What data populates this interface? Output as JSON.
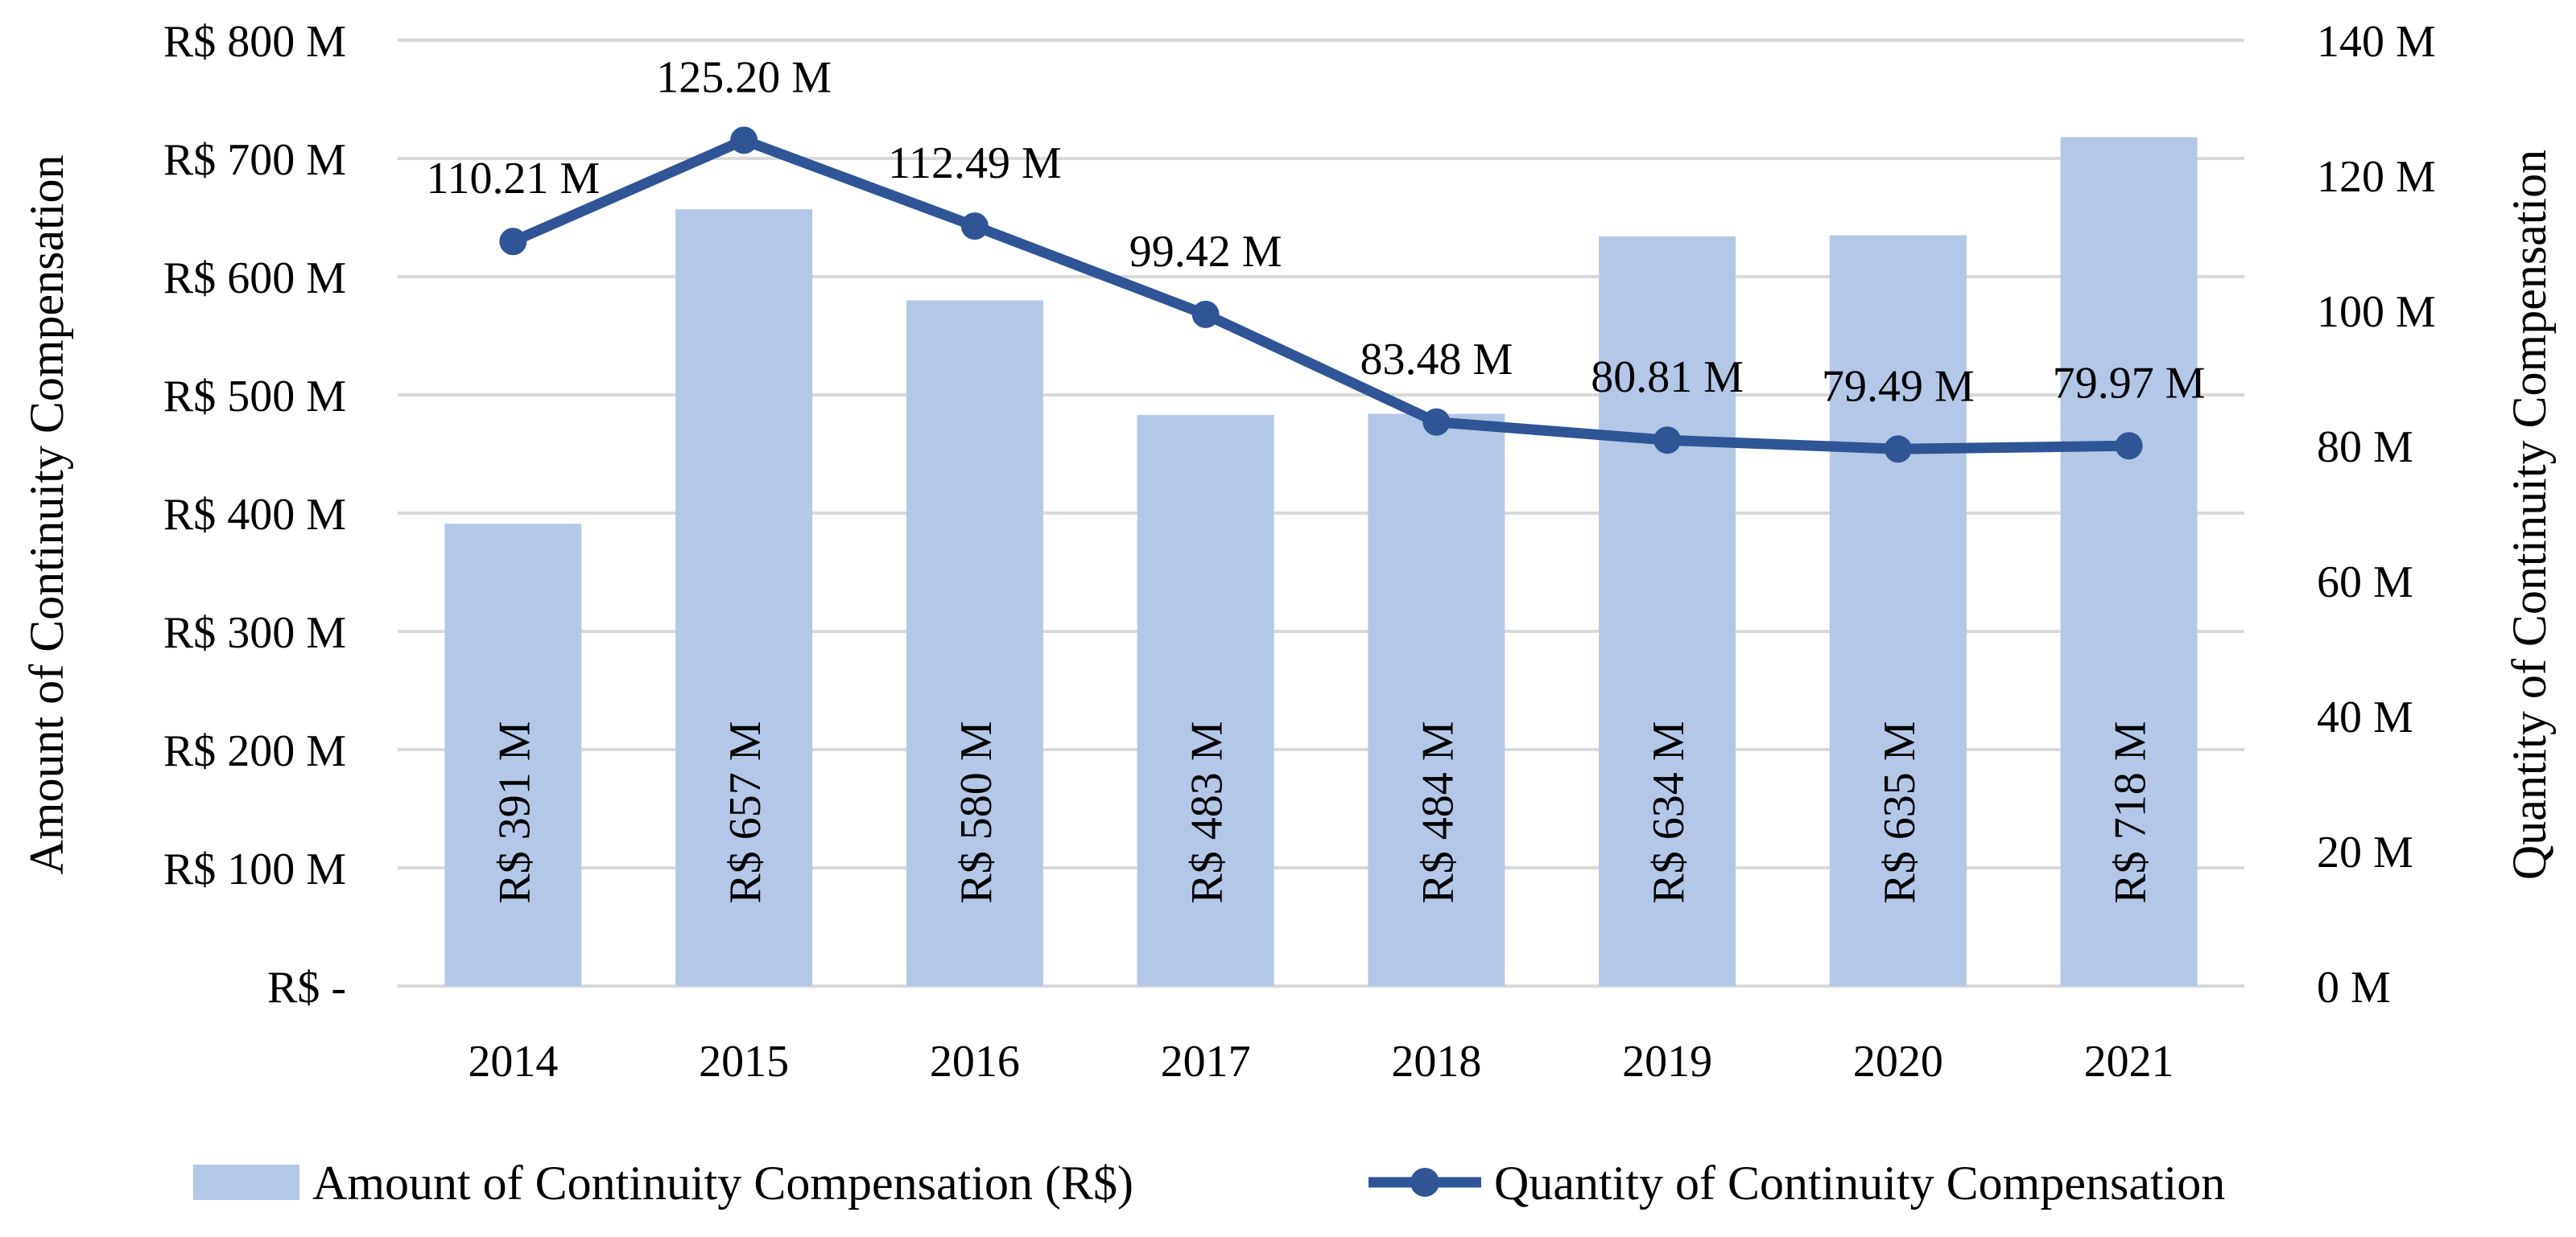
{
  "chart_data": {
    "type": "bar",
    "categories": [
      "2014",
      "2015",
      "2016",
      "2017",
      "2018",
      "2019",
      "2020",
      "2021"
    ],
    "series": [
      {
        "name": "Amount of Continuity Compensation (R$)",
        "type": "bar",
        "axis": "left",
        "values": [
          391,
          657,
          580,
          483,
          484,
          634,
          635,
          718
        ],
        "data_labels": [
          "R$ 391 M",
          "R$ 657 M",
          "R$ 580 M",
          "R$ 483 M",
          "R$ 484 M",
          "R$ 634 M",
          "R$ 635 M",
          "R$ 718 M"
        ]
      },
      {
        "name": "Quantity of Continuity Compensation",
        "type": "line",
        "axis": "right",
        "values": [
          110.21,
          125.2,
          112.49,
          99.42,
          83.48,
          80.81,
          79.49,
          79.97
        ],
        "data_labels": [
          "110.21 M",
          "125.20 M",
          "112.49 M",
          "99.42 M",
          "83.48 M",
          "80.81 M",
          "79.49 M",
          "79.97 M"
        ]
      }
    ],
    "y_left": {
      "label": "Amount of Continuity Compensation",
      "range": [
        0,
        800
      ],
      "ticks": [
        0,
        100,
        200,
        300,
        400,
        500,
        600,
        700,
        800
      ],
      "tick_labels": [
        "R$ -",
        "R$ 100 M",
        "R$ 200 M",
        "R$ 300 M",
        "R$ 400 M",
        "R$ 500 M",
        "R$ 600 M",
        "R$ 700 M",
        "R$ 800 M"
      ]
    },
    "y_right": {
      "label": "Quantity of Continuity Compensation",
      "range": [
        0,
        140
      ],
      "ticks": [
        0,
        20,
        40,
        60,
        80,
        100,
        120,
        140
      ],
      "tick_labels": [
        "0 M",
        "20 M",
        "40 M",
        "60 M",
        "80 M",
        "100 M",
        "120 M",
        "140 M"
      ]
    },
    "grid": true,
    "legend_position": "bottom",
    "colors": {
      "bar": "#B4C7E7",
      "line": "#2F5597",
      "grid": "#D9D9D9"
    }
  }
}
